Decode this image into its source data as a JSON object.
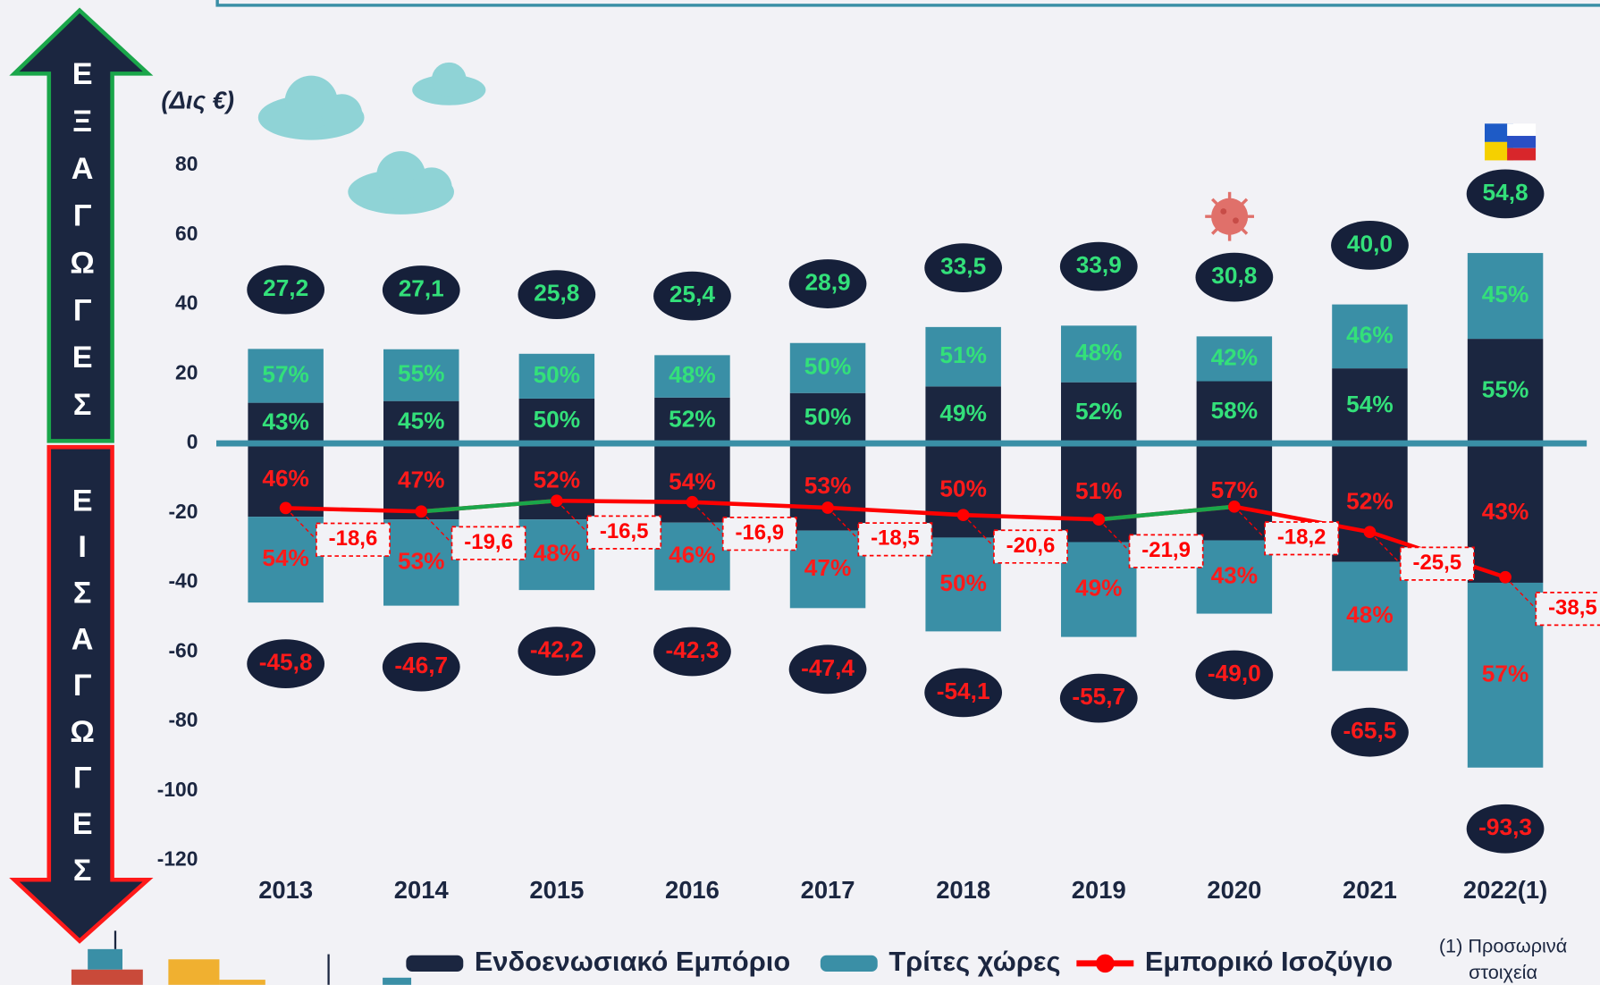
{
  "chart_data": {
    "type": "bar",
    "y_label": "(Δις €)",
    "side_labels": {
      "exports": "ΕΞΑΓΩΓΕΣ",
      "imports": "ΕΙΣΑΓΩΓΕΣ"
    },
    "categories": [
      "2013",
      "2014",
      "2015",
      "2016",
      "2017",
      "2018",
      "2019",
      "2020",
      "2021",
      "2022(1)"
    ],
    "ylim": [
      -120,
      80
    ],
    "yticks": [
      -120,
      -100,
      -80,
      -60,
      -40,
      -20,
      0,
      20,
      40,
      60,
      80
    ],
    "grid": false,
    "export_label_color": "#33e07a",
    "import_label_color": "#ff1a1a",
    "series": [
      {
        "name": "Ενδοενωσιακό Εμπόριο",
        "color": "#1b2640",
        "exports": [
          11.7,
          12.2,
          12.9,
          13.2,
          14.5,
          16.4,
          17.6,
          17.9,
          21.6,
          30.1
        ],
        "imports": [
          -21.1,
          -21.9,
          -21.9,
          -22.8,
          -25.1,
          -27.1,
          -28.4,
          -27.9,
          -34.1,
          -40.1
        ],
        "export_shares": [
          {
            "value": 43,
            "label": "43%"
          },
          {
            "value": 45,
            "label": "45%"
          },
          {
            "value": 50,
            "label": "50%"
          },
          {
            "value": 52,
            "label": "52%"
          },
          {
            "value": 50,
            "label": "50%"
          },
          {
            "value": 49,
            "label": "49%"
          },
          {
            "value": 52,
            "label": "52%"
          },
          {
            "value": 58,
            "label": "58%"
          },
          {
            "value": 54,
            "label": "54%"
          },
          {
            "value": 55,
            "label": "55%"
          }
        ],
        "import_shares": [
          {
            "value": 46,
            "label": "46%"
          },
          {
            "value": 47,
            "label": "47%"
          },
          {
            "value": 52,
            "label": "52%"
          },
          {
            "value": 54,
            "label": "54%"
          },
          {
            "value": 53,
            "label": "53%"
          },
          {
            "value": 50,
            "label": "50%"
          },
          {
            "value": 51,
            "label": "51%"
          },
          {
            "value": 57,
            "label": "57%"
          },
          {
            "value": 52,
            "label": "52%"
          },
          {
            "value": 43,
            "label": "43%"
          }
        ]
      },
      {
        "name": "Τρίτες χώρες",
        "color": "#3a8fa6",
        "exports": [
          15.5,
          14.9,
          12.9,
          12.2,
          14.4,
          17.1,
          16.3,
          12.9,
          18.4,
          24.7
        ],
        "imports": [
          -24.7,
          -24.8,
          -20.3,
          -19.5,
          -22.3,
          -27.0,
          -27.3,
          -21.1,
          -31.4,
          -53.2
        ],
        "export_shares": [
          {
            "value": 57,
            "label": "57%"
          },
          {
            "value": 55,
            "label": "55%"
          },
          {
            "value": 50,
            "label": "50%"
          },
          {
            "value": 48,
            "label": "48%"
          },
          {
            "value": 50,
            "label": "50%"
          },
          {
            "value": 51,
            "label": "51%"
          },
          {
            "value": 48,
            "label": "48%"
          },
          {
            "value": 42,
            "label": "42%"
          },
          {
            "value": 46,
            "label": "46%"
          },
          {
            "value": 45,
            "label": "45%"
          }
        ],
        "import_shares": [
          {
            "value": 54,
            "label": "54%"
          },
          {
            "value": 53,
            "label": "53%"
          },
          {
            "value": 48,
            "label": "48%"
          },
          {
            "value": 46,
            "label": "46%"
          },
          {
            "value": 47,
            "label": "47%"
          },
          {
            "value": 50,
            "label": "50%"
          },
          {
            "value": 49,
            "label": "49%"
          },
          {
            "value": 43,
            "label": "43%"
          },
          {
            "value": 48,
            "label": "48%"
          },
          {
            "value": 57,
            "label": "57%"
          }
        ]
      },
      {
        "name": "Εμπορικό Ισοζύγιο",
        "type": "line",
        "color": "#ff0000",
        "rise_color": "#1aa64a",
        "values": [
          -18.6,
          -19.6,
          -16.5,
          -16.9,
          -18.5,
          -20.6,
          -21.9,
          -18.2,
          -25.5,
          -38.5
        ],
        "value_labels": [
          "-18,6",
          "-19,6",
          "-16,5",
          "-16,9",
          "-18,5",
          "-20,6",
          "-21,9",
          "-18,2",
          "-25,5",
          "-38,5"
        ]
      }
    ],
    "export_totals": [
      {
        "value": 27.2,
        "label": "27,2"
      },
      {
        "value": 27.1,
        "label": "27,1"
      },
      {
        "value": 25.8,
        "label": "25,8"
      },
      {
        "value": 25.4,
        "label": "25,4"
      },
      {
        "value": 28.9,
        "label": "28,9"
      },
      {
        "value": 33.5,
        "label": "33,5"
      },
      {
        "value": 33.9,
        "label": "33,9"
      },
      {
        "value": 30.8,
        "label": "30,8"
      },
      {
        "value": 40.0,
        "label": "40,0"
      },
      {
        "value": 54.8,
        "label": "54,8"
      }
    ],
    "import_totals": [
      {
        "value": -45.8,
        "label": "-45,8"
      },
      {
        "value": -46.7,
        "label": "-46,7"
      },
      {
        "value": -42.2,
        "label": "-42,2"
      },
      {
        "value": -42.3,
        "label": "-42,3"
      },
      {
        "value": -47.4,
        "label": "-47,4"
      },
      {
        "value": -54.1,
        "label": "-54,1"
      },
      {
        "value": -55.7,
        "label": "-55,7"
      },
      {
        "value": -49.0,
        "label": "-49,0"
      },
      {
        "value": -65.5,
        "label": "-65,5"
      },
      {
        "value": -93.3,
        "label": "-93,3"
      }
    ],
    "note_lines": [
      "(1) Προσωρινά",
      "στοιχεία"
    ]
  }
}
